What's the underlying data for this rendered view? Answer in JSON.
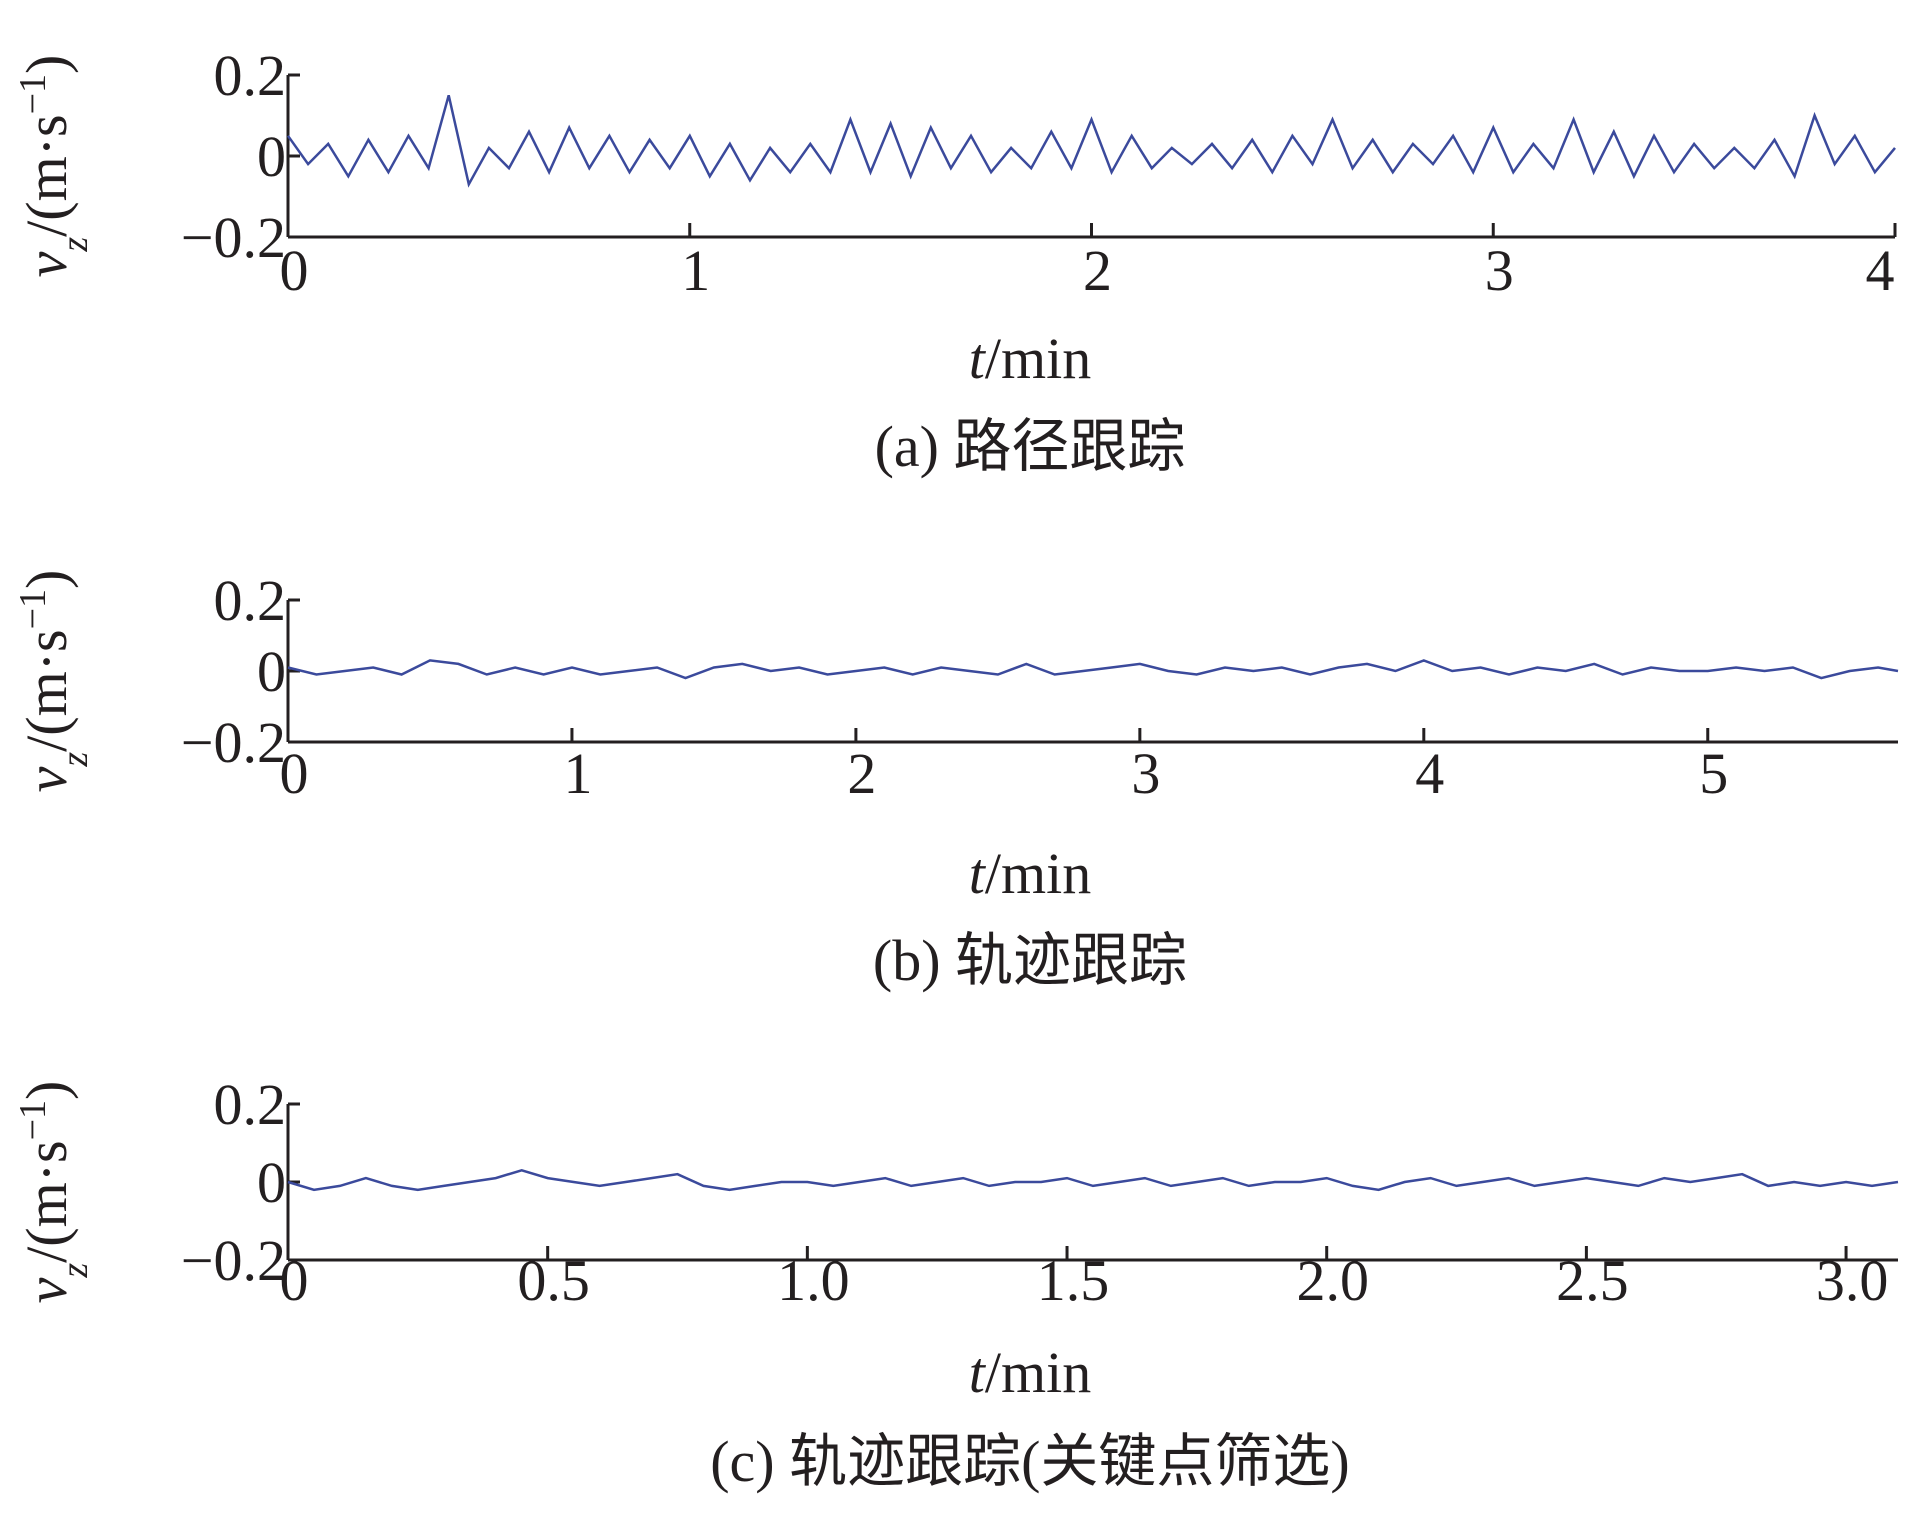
{
  "chart_data": [
    {
      "type": "line",
      "x": [
        0,
        0.05,
        0.1,
        0.15,
        0.2,
        0.25,
        0.3,
        0.35,
        0.4,
        0.45,
        0.5,
        0.55,
        0.6,
        0.65,
        0.7,
        0.75,
        0.8,
        0.85,
        0.9,
        0.95,
        1.0,
        1.05,
        1.1,
        1.15,
        1.2,
        1.25,
        1.3,
        1.35,
        1.4,
        1.45,
        1.5,
        1.55,
        1.6,
        1.65,
        1.7,
        1.75,
        1.8,
        1.85,
        1.9,
        1.95,
        2.0,
        2.05,
        2.1,
        2.15,
        2.2,
        2.25,
        2.3,
        2.35,
        2.4,
        2.45,
        2.5,
        2.55,
        2.6,
        2.65,
        2.7,
        2.75,
        2.8,
        2.85,
        2.9,
        2.95,
        3.0,
        3.05,
        3.1,
        3.15,
        3.2,
        3.25,
        3.3,
        3.35,
        3.4,
        3.45,
        3.5,
        3.55,
        3.6,
        3.65,
        3.7,
        3.75,
        3.8,
        3.85,
        3.9,
        3.95,
        4.0
      ],
      "series": [
        {
          "color": "#3b4a9c",
          "values": [
            0.05,
            -0.02,
            0.03,
            -0.05,
            0.04,
            -0.04,
            0.05,
            -0.03,
            0.15,
            -0.07,
            0.02,
            -0.03,
            0.06,
            -0.04,
            0.07,
            -0.03,
            0.05,
            -0.04,
            0.04,
            -0.03,
            0.05,
            -0.05,
            0.03,
            -0.06,
            0.02,
            -0.04,
            0.03,
            -0.04,
            0.09,
            -0.04,
            0.08,
            -0.05,
            0.07,
            -0.03,
            0.05,
            -0.04,
            0.02,
            -0.03,
            0.06,
            -0.03,
            0.09,
            -0.04,
            0.05,
            -0.03,
            0.02,
            -0.02,
            0.03,
            -0.03,
            0.04,
            -0.04,
            0.05,
            -0.02,
            0.09,
            -0.03,
            0.04,
            -0.04,
            0.03,
            -0.02,
            0.05,
            -0.04,
            0.07,
            -0.04,
            0.03,
            -0.03,
            0.09,
            -0.04,
            0.06,
            -0.05,
            0.05,
            -0.04,
            0.03,
            -0.03,
            0.02,
            -0.03,
            0.04,
            -0.05,
            0.1,
            -0.02,
            0.05,
            -0.04,
            0.02
          ]
        }
      ],
      "xlim": [
        0,
        4
      ],
      "ylim": [
        -0.2,
        0.2
      ],
      "xticks": [
        0,
        1,
        2,
        3,
        4
      ],
      "yticks": [
        {
          "value": -0.2,
          "label": "−0.2"
        },
        0,
        0.2
      ],
      "xlabel": [
        "t",
        "/min"
      ],
      "ylabel": [
        "v",
        "z",
        "/(m·s",
        "−1",
        ")"
      ],
      "caption": "(a) 路径跟踪"
    },
    {
      "type": "line",
      "x": [
        0,
        0.1,
        0.2,
        0.3,
        0.4,
        0.5,
        0.6,
        0.7,
        0.8,
        0.9,
        1.0,
        1.1,
        1.2,
        1.3,
        1.4,
        1.5,
        1.6,
        1.7,
        1.8,
        1.9,
        2.0,
        2.1,
        2.2,
        2.3,
        2.4,
        2.5,
        2.6,
        2.7,
        2.8,
        2.9,
        3.0,
        3.1,
        3.2,
        3.3,
        3.4,
        3.5,
        3.6,
        3.7,
        3.8,
        3.9,
        4.0,
        4.1,
        4.2,
        4.3,
        4.4,
        4.5,
        4.6,
        4.7,
        4.8,
        4.9,
        5.0,
        5.1,
        5.2,
        5.3,
        5.4,
        5.5,
        5.6,
        5.67
      ],
      "series": [
        {
          "color": "#3b4a9c",
          "values": [
            0.01,
            -0.01,
            0,
            0.01,
            -0.01,
            0.03,
            0.02,
            -0.01,
            0.01,
            -0.01,
            0.01,
            -0.01,
            0,
            0.01,
            -0.02,
            0.01,
            0.02,
            0,
            0.01,
            -0.01,
            0,
            0.01,
            -0.01,
            0.01,
            0,
            -0.01,
            0.02,
            -0.01,
            0,
            0.01,
            0.02,
            0,
            -0.01,
            0.01,
            0,
            0.01,
            -0.01,
            0.01,
            0.02,
            0,
            0.03,
            0,
            0.01,
            -0.01,
            0.01,
            0,
            0.02,
            -0.01,
            0.01,
            0,
            0,
            0.01,
            0,
            0.01,
            -0.02,
            0,
            0.01,
            0
          ]
        }
      ],
      "xlim": [
        0,
        5.67
      ],
      "ylim": [
        -0.2,
        0.2
      ],
      "xticks": [
        0,
        1,
        2,
        3,
        4,
        5
      ],
      "yticks": [
        {
          "value": -0.2,
          "label": "−0.2"
        },
        0,
        0.2
      ],
      "xlabel": [
        "t",
        "/min"
      ],
      "ylabel": [
        "v",
        "z",
        "/(m·s",
        "−1",
        ")"
      ],
      "caption": "(b) 轨迹跟踪"
    },
    {
      "type": "line",
      "x": [
        0,
        0.05,
        0.1,
        0.15,
        0.2,
        0.25,
        0.3,
        0.35,
        0.4,
        0.45,
        0.5,
        0.55,
        0.6,
        0.65,
        0.7,
        0.75,
        0.8,
        0.85,
        0.9,
        0.95,
        1.0,
        1.05,
        1.1,
        1.15,
        1.2,
        1.25,
        1.3,
        1.35,
        1.4,
        1.45,
        1.5,
        1.55,
        1.6,
        1.65,
        1.7,
        1.75,
        1.8,
        1.85,
        1.9,
        1.95,
        2.0,
        2.05,
        2.1,
        2.15,
        2.2,
        2.25,
        2.3,
        2.35,
        2.4,
        2.45,
        2.5,
        2.55,
        2.6,
        2.65,
        2.7,
        2.75,
        2.8,
        2.85,
        2.9,
        2.95,
        3.0,
        3.05,
        3.1
      ],
      "series": [
        {
          "color": "#3b4a9c",
          "values": [
            0,
            -0.02,
            -0.01,
            0.01,
            -0.01,
            -0.02,
            -0.01,
            0,
            0.01,
            0.03,
            0.01,
            0,
            -0.01,
            0,
            0.01,
            0.02,
            -0.01,
            -0.02,
            -0.01,
            0,
            0,
            -0.01,
            0,
            0.01,
            -0.01,
            0,
            0.01,
            -0.01,
            0,
            0,
            0.01,
            -0.01,
            0,
            0.01,
            -0.01,
            0,
            0.01,
            -0.01,
            0,
            0,
            0.01,
            -0.01,
            -0.02,
            0,
            0.01,
            -0.01,
            0,
            0.01,
            -0.01,
            0,
            0.01,
            0,
            -0.01,
            0.01,
            0,
            0.01,
            0.02,
            -0.01,
            0,
            -0.01,
            0,
            -0.01,
            0
          ]
        }
      ],
      "xlim": [
        0,
        3.1
      ],
      "ylim": [
        -0.2,
        0.2
      ],
      "xticks": [
        0,
        0.5,
        {
          "value": 1,
          "label": "1.0"
        },
        1.5,
        {
          "value": 2,
          "label": "2.0"
        },
        2.5,
        {
          "value": 3,
          "label": "3.0"
        }
      ],
      "yticks": [
        {
          "value": -0.2,
          "label": "−0.2"
        },
        0,
        0.2
      ],
      "xlabel": [
        "t",
        "/min"
      ],
      "ylabel": [
        "v",
        "z",
        "/(m·s",
        "−1",
        ")"
      ],
      "caption": "(c) 轨迹跟踪(关键点筛选)"
    }
  ]
}
